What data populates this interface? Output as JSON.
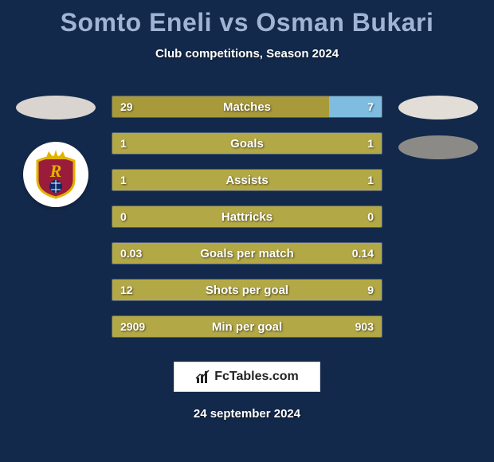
{
  "background_color": "#13294b",
  "text_color": "#ffffff",
  "title": "Somto Eneli vs Osman Bukari",
  "title_color": "#a0b4d4",
  "subtitle": "Club competitions, Season 2024",
  "date": "24 september 2024",
  "footer_text": "FcTables.com",
  "left_color": "#a89a3a",
  "right_color": "#7fbde0",
  "neutral_color": "#b3a846",
  "bar_border_color": "rgba(255,255,255,0.25)",
  "ellipse_left_color": "#d9d4d0",
  "ellipse_right1_color": "#e3ddd7",
  "ellipse_right2_color": "#8b8a86",
  "club_badge_shield_fill": "#9a1b3a",
  "club_badge_shield_stroke": "#e0b400",
  "club_badge_crown_fill": "#e0b400",
  "club_badge_ball_fill": "#0a2a6a",
  "rows": [
    {
      "label": "Matches",
      "left": "29",
      "right": "7",
      "left_pct": 80.5,
      "right_pct": 19.5,
      "split": true
    },
    {
      "label": "Goals",
      "left": "1",
      "right": "1",
      "left_pct": 100,
      "right_pct": 0,
      "split": false
    },
    {
      "label": "Assists",
      "left": "1",
      "right": "1",
      "left_pct": 100,
      "right_pct": 0,
      "split": false
    },
    {
      "label": "Hattricks",
      "left": "0",
      "right": "0",
      "left_pct": 100,
      "right_pct": 0,
      "split": false
    },
    {
      "label": "Goals per match",
      "left": "0.03",
      "right": "0.14",
      "left_pct": 100,
      "right_pct": 0,
      "split": false
    },
    {
      "label": "Shots per goal",
      "left": "12",
      "right": "9",
      "left_pct": 100,
      "right_pct": 0,
      "split": false
    },
    {
      "label": "Min per goal",
      "left": "2909",
      "right": "903",
      "left_pct": 100,
      "right_pct": 0,
      "split": false
    }
  ]
}
